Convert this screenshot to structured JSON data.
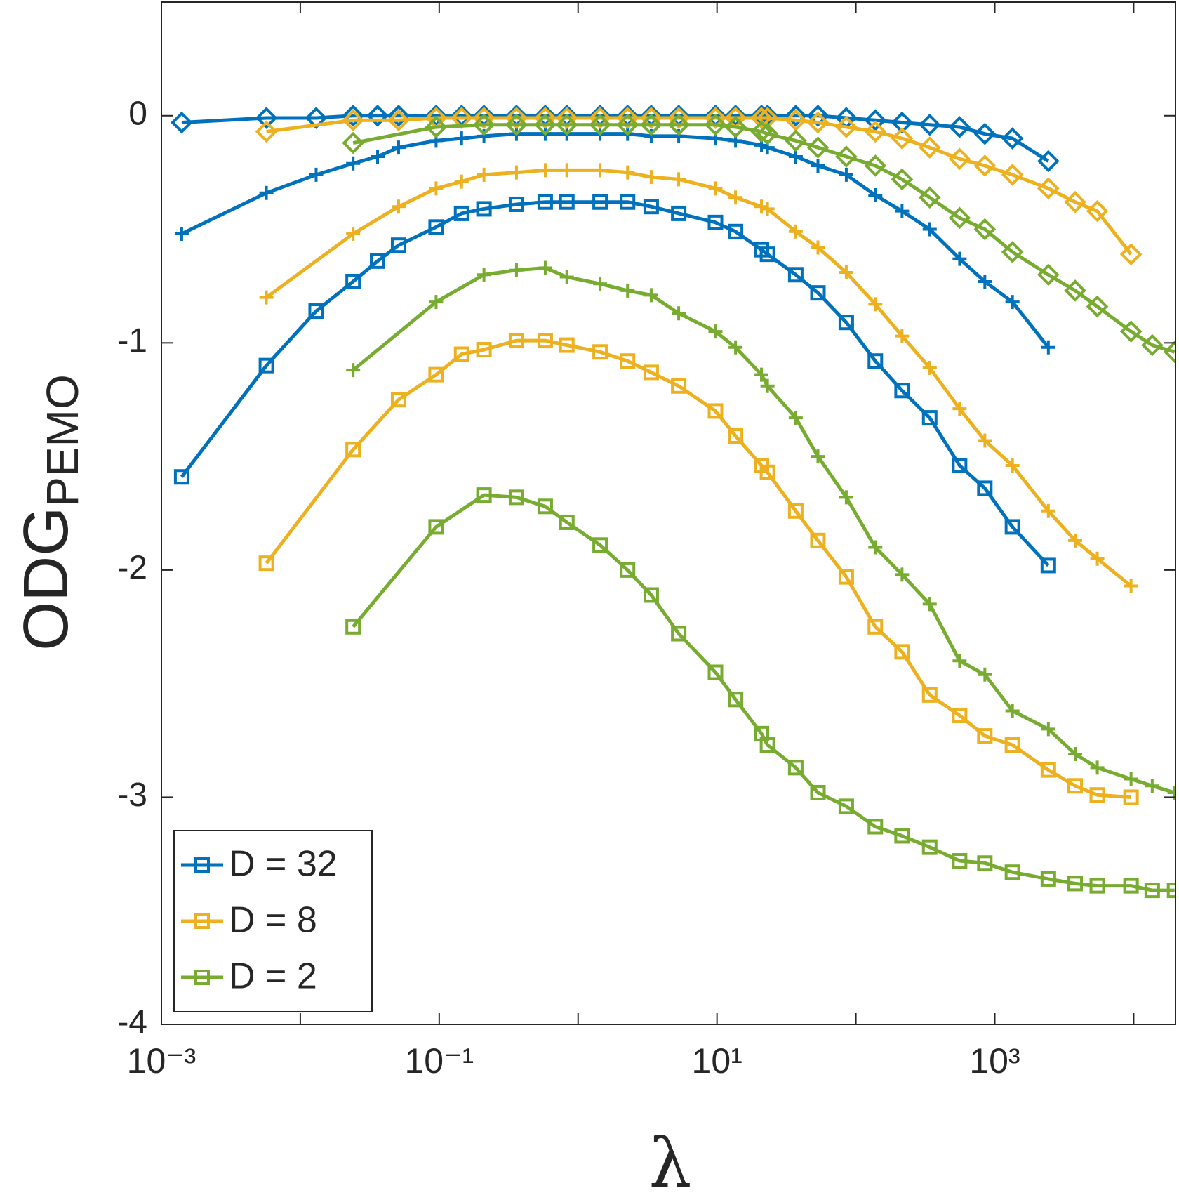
{
  "chart_data": {
    "type": "line",
    "xlabel": "λ",
    "ylabel": "ODG",
    "ylabel_sub": "PEMO",
    "xscale": "log",
    "xlim": [
      0.001,
      20000
    ],
    "ylim": [
      -4,
      0.5
    ],
    "xticks": [
      {
        "value": 0.001,
        "label": "10⁻³"
      },
      {
        "value": 0.1,
        "label": "10⁻¹"
      },
      {
        "value": 10,
        "label": "10¹"
      },
      {
        "value": 1000,
        "label": "10³"
      }
    ],
    "xminor_ticks": [
      0.01,
      1,
      100,
      10000
    ],
    "yticks": [
      0,
      -1,
      -2,
      -3,
      -4
    ],
    "grid": false,
    "legend": "lower left",
    "series": [
      {
        "color": "#0072BD",
        "marker": "diamond",
        "x": [
          0.0014,
          0.0057,
          0.013,
          0.024,
          0.036,
          0.051,
          0.095,
          0.145,
          0.21,
          0.36,
          0.58,
          0.83,
          1.44,
          2.27,
          3.36,
          5.3,
          9.75,
          13.6,
          20.9,
          23.1,
          36.9,
          53.3,
          85.3,
          138,
          215,
          340,
          558,
          848,
          1340,
          2430
        ],
        "values": [
          -0.03,
          -0.01,
          -0.01,
          0,
          0,
          0,
          0,
          0,
          0,
          0,
          0,
          0,
          0,
          0,
          0,
          0,
          0,
          0,
          0,
          0,
          0,
          0,
          -0.01,
          -0.02,
          -0.03,
          -0.04,
          -0.05,
          -0.08,
          -0.1,
          -0.2
        ]
      },
      {
        "color": "#0072BD",
        "marker": "plus",
        "x": [
          0.0014,
          0.0057,
          0.013,
          0.024,
          0.036,
          0.051,
          0.095,
          0.145,
          0.21,
          0.36,
          0.58,
          0.83,
          1.44,
          2.27,
          3.36,
          5.3,
          9.75,
          13.6,
          20.9,
          23.1,
          36.9,
          53.3,
          85.3,
          138,
          215,
          340,
          558,
          848,
          1340,
          2430
        ],
        "values": [
          -0.52,
          -0.34,
          -0.26,
          -0.21,
          -0.18,
          -0.14,
          -0.11,
          -0.1,
          -0.09,
          -0.08,
          -0.08,
          -0.08,
          -0.08,
          -0.08,
          -0.09,
          -0.09,
          -0.1,
          -0.11,
          -0.13,
          -0.14,
          -0.18,
          -0.22,
          -0.26,
          -0.35,
          -0.42,
          -0.5,
          -0.63,
          -0.73,
          -0.82,
          -1.02
        ]
      },
      {
        "name": "D = 32",
        "color": "#0072BD",
        "marker": "square",
        "x": [
          0.0014,
          0.0057,
          0.013,
          0.024,
          0.036,
          0.051,
          0.095,
          0.145,
          0.21,
          0.36,
          0.58,
          0.83,
          1.44,
          2.27,
          3.36,
          5.3,
          9.75,
          13.6,
          20.9,
          23.1,
          36.9,
          53.3,
          85.3,
          138,
          215,
          340,
          558,
          848,
          1340,
          2430
        ],
        "values": [
          -1.59,
          -1.1,
          -0.86,
          -0.73,
          -0.64,
          -0.57,
          -0.49,
          -0.43,
          -0.41,
          -0.39,
          -0.38,
          -0.38,
          -0.38,
          -0.38,
          -0.4,
          -0.43,
          -0.47,
          -0.51,
          -0.59,
          -0.61,
          -0.7,
          -0.78,
          -0.91,
          -1.08,
          -1.21,
          -1.33,
          -1.54,
          -1.64,
          -1.81,
          -1.98
        ]
      },
      {
        "color": "#EDB120",
        "marker": "diamond",
        "x": [
          0.0057,
          0.024,
          0.051,
          0.095,
          0.145,
          0.21,
          0.36,
          0.58,
          0.83,
          1.44,
          2.27,
          3.36,
          5.3,
          9.75,
          13.6,
          20.9,
          23.1,
          36.9,
          53.3,
          85.3,
          138,
          215,
          340,
          558,
          848,
          1340,
          2430,
          3790,
          5470,
          9570
        ],
        "values": [
          -0.07,
          -0.02,
          -0.02,
          -0.01,
          -0.01,
          -0.01,
          -0.01,
          -0.01,
          -0.01,
          -0.01,
          -0.01,
          -0.01,
          -0.01,
          -0.01,
          -0.01,
          -0.01,
          -0.01,
          -0.02,
          -0.03,
          -0.05,
          -0.07,
          -0.1,
          -0.14,
          -0.19,
          -0.22,
          -0.26,
          -0.32,
          -0.38,
          -0.42,
          -0.61
        ]
      },
      {
        "color": "#EDB120",
        "marker": "plus",
        "x": [
          0.0057,
          0.024,
          0.051,
          0.095,
          0.145,
          0.21,
          0.36,
          0.58,
          0.83,
          1.44,
          2.27,
          3.36,
          5.3,
          9.75,
          13.6,
          20.9,
          23.1,
          36.9,
          53.3,
          85.3,
          138,
          215,
          340,
          558,
          848,
          1340,
          2430,
          3790,
          5470,
          9570
        ],
        "values": [
          -0.8,
          -0.52,
          -0.4,
          -0.32,
          -0.29,
          -0.26,
          -0.25,
          -0.24,
          -0.24,
          -0.24,
          -0.25,
          -0.27,
          -0.28,
          -0.32,
          -0.36,
          -0.4,
          -0.41,
          -0.51,
          -0.58,
          -0.69,
          -0.83,
          -0.97,
          -1.11,
          -1.29,
          -1.43,
          -1.54,
          -1.74,
          -1.87,
          -1.95,
          -2.07
        ]
      },
      {
        "name": "D = 8",
        "color": "#EDB120",
        "marker": "square",
        "x": [
          0.0057,
          0.024,
          0.051,
          0.095,
          0.145,
          0.21,
          0.36,
          0.58,
          0.83,
          1.44,
          2.27,
          3.36,
          5.3,
          9.75,
          13.6,
          20.9,
          23.1,
          36.9,
          53.3,
          85.3,
          138,
          215,
          340,
          558,
          848,
          1340,
          2430,
          3790,
          5470,
          9570
        ],
        "values": [
          -1.97,
          -1.47,
          -1.25,
          -1.14,
          -1.05,
          -1.03,
          -0.99,
          -0.99,
          -1.01,
          -1.04,
          -1.08,
          -1.13,
          -1.19,
          -1.3,
          -1.41,
          -1.54,
          -1.57,
          -1.74,
          -1.87,
          -2.03,
          -2.25,
          -2.36,
          -2.55,
          -2.64,
          -2.73,
          -2.77,
          -2.88,
          -2.95,
          -2.99,
          -3.0
        ]
      },
      {
        "color": "#77AC30",
        "marker": "diamond",
        "x": [
          0.024,
          0.095,
          0.21,
          0.36,
          0.58,
          0.83,
          1.44,
          2.27,
          3.36,
          5.3,
          9.75,
          13.6,
          20.9,
          23.1,
          36.9,
          53.3,
          85.3,
          138,
          215,
          340,
          558,
          848,
          1340,
          2430,
          3790,
          5470,
          9570,
          13600,
          19700
        ],
        "values": [
          -0.12,
          -0.05,
          -0.04,
          -0.04,
          -0.04,
          -0.04,
          -0.04,
          -0.04,
          -0.04,
          -0.04,
          -0.04,
          -0.05,
          -0.07,
          -0.08,
          -0.11,
          -0.14,
          -0.18,
          -0.22,
          -0.28,
          -0.36,
          -0.45,
          -0.5,
          -0.6,
          -0.7,
          -0.77,
          -0.84,
          -0.95,
          -1.01,
          -1.04
        ]
      },
      {
        "color": "#77AC30",
        "marker": "plus",
        "x": [
          0.024,
          0.095,
          0.21,
          0.36,
          0.58,
          0.83,
          1.44,
          2.27,
          3.36,
          5.3,
          9.75,
          13.6,
          20.9,
          23.1,
          36.9,
          53.3,
          85.3,
          138,
          215,
          340,
          558,
          848,
          1340,
          2430,
          3790,
          5470,
          9570,
          13600,
          19700
        ],
        "values": [
          -1.12,
          -0.82,
          -0.7,
          -0.68,
          -0.67,
          -0.71,
          -0.74,
          -0.77,
          -0.79,
          -0.87,
          -0.95,
          -1.02,
          -1.14,
          -1.19,
          -1.33,
          -1.5,
          -1.68,
          -1.9,
          -2.02,
          -2.15,
          -2.4,
          -2.46,
          -2.62,
          -2.7,
          -2.81,
          -2.87,
          -2.92,
          -2.95,
          -2.98
        ]
      },
      {
        "name": "D = 2",
        "color": "#77AC30",
        "marker": "square",
        "x": [
          0.024,
          0.095,
          0.21,
          0.36,
          0.58,
          0.83,
          1.44,
          2.27,
          3.36,
          5.3,
          9.75,
          13.6,
          20.9,
          23.1,
          36.9,
          53.3,
          85.3,
          138,
          215,
          340,
          558,
          848,
          1340,
          2430,
          3790,
          5470,
          9570,
          13600,
          19700
        ],
        "values": [
          -2.25,
          -1.81,
          -1.67,
          -1.68,
          -1.72,
          -1.79,
          -1.89,
          -2.0,
          -2.11,
          -2.28,
          -2.45,
          -2.57,
          -2.72,
          -2.77,
          -2.87,
          -2.98,
          -3.04,
          -3.13,
          -3.17,
          -3.22,
          -3.28,
          -3.29,
          -3.33,
          -3.36,
          -3.38,
          -3.39,
          -3.39,
          -3.41,
          -3.41
        ]
      }
    ]
  }
}
